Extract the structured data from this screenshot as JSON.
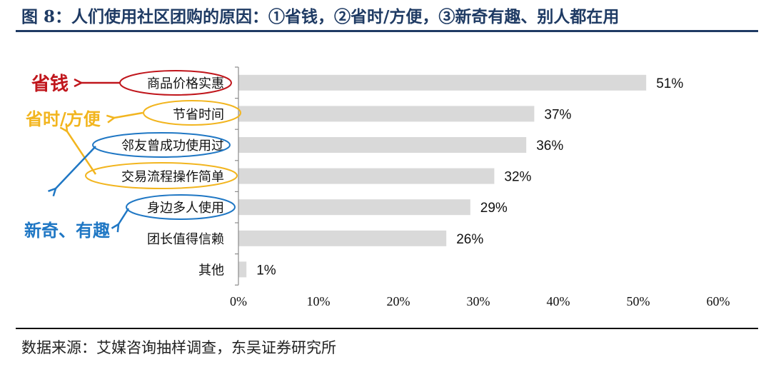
{
  "title": "图 8：人们使用社区团购的原因：①省钱，②省时/方便，③新奇有趣、别人都在用",
  "source": "数据来源：艾媒咨询抽样调查，东吴证券研究所",
  "colors": {
    "title": "#1f3b64",
    "bar": "#d9d9d9",
    "red": "#c0161c",
    "yellow": "#f2b51f",
    "blue": "#1f77c4"
  },
  "annotations": {
    "save_money": "省钱",
    "save_time": "省时/方便",
    "novelty": "新奇、有趣"
  },
  "chart_data": {
    "type": "bar",
    "orientation": "horizontal",
    "categories": [
      "商品价格实惠",
      "节省时间",
      "邻友曾成功使用过",
      "交易流程操作简单",
      "身边多人使用",
      "团长值得信赖",
      "其他"
    ],
    "values": [
      51,
      37,
      36,
      32,
      29,
      26,
      1
    ],
    "data_labels": [
      "51%",
      "37%",
      "36%",
      "32%",
      "29%",
      "26%",
      "1%"
    ],
    "xticks": [
      "0%",
      "10%",
      "20%",
      "30%",
      "40%",
      "50%",
      "60%"
    ],
    "xlim": [
      0,
      60
    ],
    "grid": false
  }
}
